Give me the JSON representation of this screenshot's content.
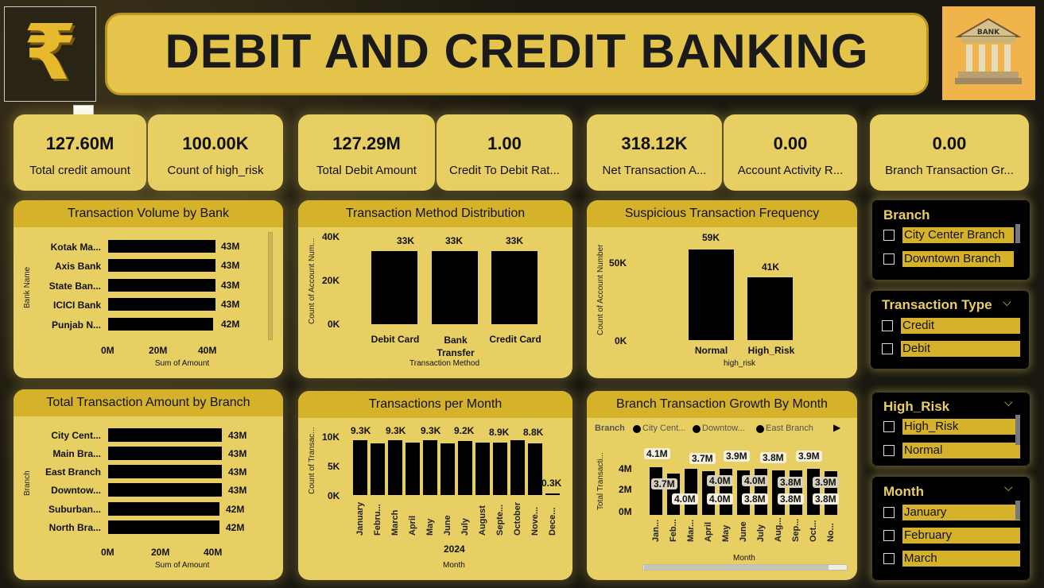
{
  "title": "DEBIT AND CREDIT BANKING",
  "logo_icon": "rupee-icon",
  "bank_icon_label": "BANK",
  "more_label": "...",
  "kpis": [
    {
      "value": "127.60M",
      "label": "Total credit amount"
    },
    {
      "value": "100.00K",
      "label": "Count of high_risk"
    },
    {
      "value": "127.29M",
      "label": "Total Debit Amount"
    },
    {
      "value": "1.00",
      "label": "Credit To Debit Rat..."
    },
    {
      "value": "318.12K",
      "label": "Net Transaction A..."
    },
    {
      "value": "0.00",
      "label": "Account Activity R..."
    },
    {
      "value": "0.00",
      "label": "Branch Transaction Gr..."
    }
  ],
  "panels": {
    "volume_by_bank": {
      "title": "Transaction Volume by Bank",
      "ylabel": "Bank Name",
      "xlabel": "Sum of Amount",
      "xticks": [
        "0M",
        "20M",
        "40M"
      ],
      "rows": [
        {
          "label": "Kotak Ma...",
          "value": "43M"
        },
        {
          "label": "Axis Bank",
          "value": "43M"
        },
        {
          "label": "State Ban...",
          "value": "43M"
        },
        {
          "label": "ICICI Bank",
          "value": "43M"
        },
        {
          "label": "Punjab N...",
          "value": "42M"
        }
      ]
    },
    "method_dist": {
      "title": "Transaction Method Distribution",
      "ylabel": "Count of Account Num...",
      "xlabel": "Transaction Method",
      "yticks": [
        "40K",
        "20K",
        "0K"
      ],
      "bars": [
        {
          "label": "Debit Card",
          "value": "33K"
        },
        {
          "label": "Bank Transfer",
          "value": "33K"
        },
        {
          "label": "Credit Card",
          "value": "33K"
        }
      ]
    },
    "suspicious": {
      "title": "Suspicious Transaction Frequency",
      "ylabel": "Count of Account Number",
      "xlabel": "high_risk",
      "yticks": [
        "50K",
        "0K"
      ],
      "bars": [
        {
          "label": "Normal",
          "value": "59K"
        },
        {
          "label": "High_Risk",
          "value": "41K"
        }
      ]
    },
    "amount_by_branch": {
      "title": "Total Transaction Amount by Branch",
      "ylabel": "Branch",
      "xlabel": "Sum of Amount",
      "xticks": [
        "0M",
        "20M",
        "40M"
      ],
      "rows": [
        {
          "label": "City Cent...",
          "value": "43M"
        },
        {
          "label": "Main Bra...",
          "value": "43M"
        },
        {
          "label": "East Branch",
          "value": "43M"
        },
        {
          "label": "Downtow...",
          "value": "43M"
        },
        {
          "label": "Suburban...",
          "value": "42M"
        },
        {
          "label": "North Bra...",
          "value": "42M"
        }
      ]
    },
    "per_month": {
      "title": "Transactions per Month",
      "ylabel": "Count of Transac...",
      "xlabel": "Month",
      "year": "2024",
      "yticks": [
        "10K",
        "5K",
        "0K"
      ],
      "labels_top": [
        "9.3K",
        "9.3K",
        "9.3K",
        "9.2K",
        "8.9K",
        "8.8K"
      ],
      "label_small": "0.3K",
      "months": [
        "January",
        "Febru...",
        "March",
        "April",
        "May",
        "June",
        "July",
        "August",
        "Septe...",
        "October",
        "Nove...",
        "Dece..."
      ]
    },
    "growth": {
      "title": "Branch Transaction Growth By Month",
      "legend_title": "Branch",
      "legend": [
        "City Cent...",
        "Downtow...",
        "East Branch"
      ],
      "ylabel": "Total Transacti...",
      "xlabel": "Month",
      "yticks": [
        "4M",
        "2M",
        "0M"
      ],
      "labels": [
        "4.1M",
        "3.7M",
        "3.9M",
        "3.8M",
        "3.9M",
        "3.7M",
        "4.0M",
        "4.0M",
        "3.8M",
        "3.9M",
        "4.0M",
        "4.0M",
        "3.8M",
        "3.8M",
        "3.8M"
      ],
      "months": [
        "Jan...",
        "Feb...",
        "Mar...",
        "April",
        "May",
        "June",
        "July",
        "Aug...",
        "Sep...",
        "Oct...",
        "No..."
      ]
    }
  },
  "slicers": {
    "branch": {
      "title": "Branch",
      "items": [
        "City Center Branch",
        "Downtown Branch"
      ]
    },
    "type": {
      "title": "Transaction Type",
      "items": [
        "Credit",
        "Debit"
      ]
    },
    "risk": {
      "title": "High_Risk",
      "items": [
        "High_Risk",
        "Normal"
      ]
    },
    "month": {
      "title": "Month",
      "items": [
        "January",
        "February",
        "March"
      ]
    }
  },
  "colors": {
    "gold": "#e8cf63",
    "dark_gold": "#d6b22a",
    "bar": "#000000"
  }
}
